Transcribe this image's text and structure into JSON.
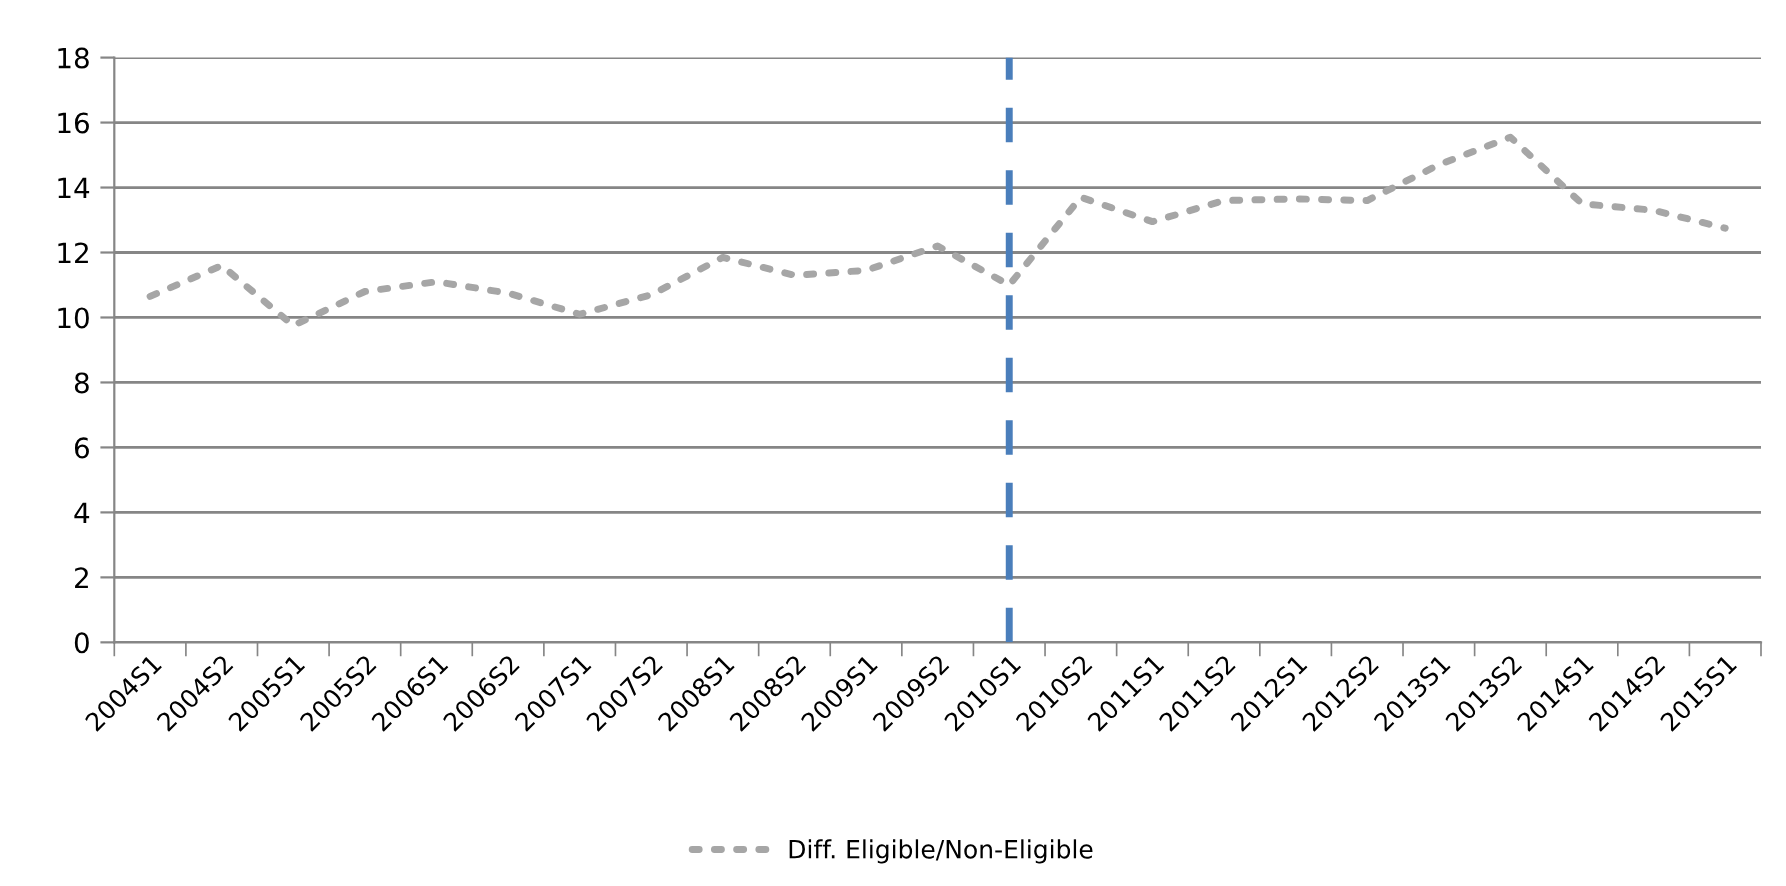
{
  "chart_data": {
    "type": "line",
    "categories": [
      "2004S1",
      "2004S2",
      "2005S1",
      "2005S2",
      "2006S1",
      "2006S2",
      "2007S1",
      "2007S2",
      "2008S1",
      "2008S2",
      "2009S1",
      "2009S2",
      "2010S1",
      "2010S2",
      "2011S1",
      "2011S2",
      "2012S1",
      "2012S2",
      "2013S1",
      "2013S2",
      "2014S1",
      "2014S2",
      "2015S1"
    ],
    "series": [
      {
        "name": "Diff. Eligible/Non-Eligible",
        "color": "#a6a6a6",
        "values": [
          10.65,
          11.6,
          9.75,
          10.8,
          11.1,
          10.75,
          10.1,
          10.7,
          11.85,
          11.3,
          11.45,
          12.2,
          11.0,
          13.7,
          12.95,
          13.6,
          13.65,
          13.6,
          14.7,
          15.55,
          13.5,
          13.3,
          12.75
        ]
      }
    ],
    "ylim": [
      0,
      18
    ],
    "yticks": [
      0,
      2,
      4,
      6,
      8,
      10,
      12,
      14,
      16,
      18
    ],
    "grid": "y",
    "legend": "bottom",
    "line_style": "dotted",
    "marker": "none",
    "ref_lines": [
      {
        "axis": "x",
        "value": "2010S1",
        "color": "#4a7ebb",
        "line_style": "dashed"
      }
    ]
  }
}
